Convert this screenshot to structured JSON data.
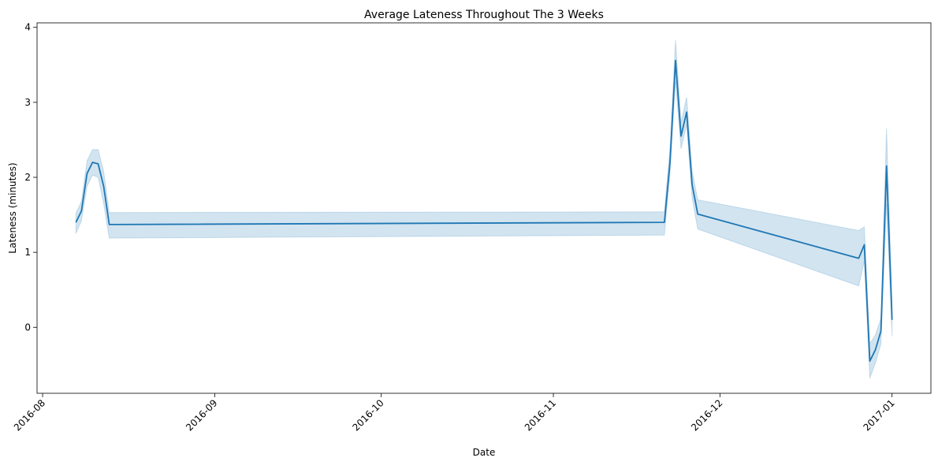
{
  "chart_data": {
    "type": "line",
    "title": "Average Lateness Throughout The 3 Weeks",
    "xlabel": "Date",
    "ylabel": "Lateness (minutes)",
    "x_ticks": [
      "2016-08",
      "2016-09",
      "2016-10",
      "2016-11",
      "2016-12",
      "2017-01"
    ],
    "x_tick_dates": [
      "2016-08-01",
      "2016-09-01",
      "2016-10-01",
      "2016-11-01",
      "2016-12-01",
      "2017-01-01"
    ],
    "y_ticks": [
      "0",
      "1",
      "2",
      "3",
      "4"
    ],
    "xlim": [
      "2016-07-31",
      "2017-01-08"
    ],
    "ylim": [
      -0.88,
      4.06
    ],
    "grid": false,
    "legend": "none",
    "series": [
      {
        "color": "#1f77b4",
        "x": [
          "2016-08-07",
          "2016-08-08",
          "2016-08-09",
          "2016-08-10",
          "2016-08-11",
          "2016-08-12",
          "2016-08-13",
          "2016-11-21",
          "2016-11-22",
          "2016-11-23",
          "2016-11-24",
          "2016-11-25",
          "2016-11-26",
          "2016-11-27",
          "2016-12-26",
          "2016-12-27",
          "2016-12-28",
          "2016-12-29",
          "2016-12-30",
          "2016-12-31",
          "2017-01-01"
        ],
        "y": [
          1.4,
          1.55,
          2.05,
          2.2,
          2.18,
          1.88,
          1.37,
          1.4,
          2.2,
          3.56,
          2.55,
          2.87,
          1.9,
          1.51,
          0.92,
          1.1,
          -0.45,
          -0.3,
          -0.05,
          2.15,
          0.1
        ],
        "ci_lower": [
          1.25,
          1.42,
          1.88,
          2.03,
          2.0,
          1.65,
          1.19,
          1.23,
          2.05,
          3.28,
          2.38,
          2.7,
          1.72,
          1.31,
          0.55,
          0.88,
          -0.68,
          -0.48,
          -0.22,
          1.65,
          -0.12
        ],
        "ci_upper": [
          1.52,
          1.68,
          2.22,
          2.37,
          2.37,
          2.08,
          1.53,
          1.54,
          2.4,
          3.83,
          2.73,
          3.07,
          2.08,
          1.7,
          1.29,
          1.34,
          -0.22,
          -0.1,
          0.12,
          2.65,
          0.33
        ]
      }
    ]
  }
}
